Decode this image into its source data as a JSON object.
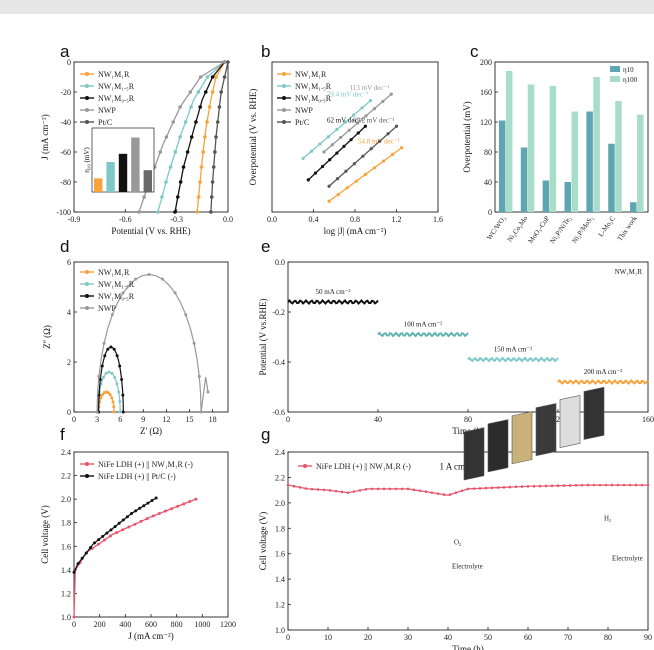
{
  "panels": {
    "a": "a",
    "b": "b",
    "c": "c",
    "d": "d",
    "e": "e",
    "f": "f",
    "g": "g"
  },
  "chart_data": [
    {
      "id": "a",
      "type": "line",
      "xlabel": "Potential (V vs. RHE)",
      "ylabel": "J (mA cm⁻²)",
      "xlim": [
        -0.9,
        0.0
      ],
      "ylim": [
        -100,
        0
      ],
      "xticks": [
        "-0.9",
        "-0.6",
        "-0.3",
        "0.0"
      ],
      "yticks": [
        "0",
        "-20",
        "-40",
        "-60",
        "-80",
        "-100"
      ],
      "series": [
        {
          "name": "NW₁M₁R",
          "color": "#f7a23a",
          "points": [
            [
              -0.02,
              0
            ],
            [
              -0.07,
              -10
            ],
            [
              -0.1,
              -25
            ],
            [
              -0.13,
              -45
            ],
            [
              -0.155,
              -70
            ],
            [
              -0.18,
              -100
            ]
          ]
        },
        {
          "name": "NW₁M₁.₅R",
          "color": "#7fc8c8",
          "points": [
            [
              -0.02,
              0
            ],
            [
              -0.12,
              -10
            ],
            [
              -0.2,
              -25
            ],
            [
              -0.28,
              -50
            ],
            [
              -0.35,
              -75
            ],
            [
              -0.41,
              -100
            ]
          ]
        },
        {
          "name": "NW₁M₀.₅R",
          "color": "#111111",
          "points": [
            [
              -0.02,
              0
            ],
            [
              -0.09,
              -10
            ],
            [
              -0.15,
              -25
            ],
            [
              -0.2,
              -45
            ],
            [
              -0.26,
              -70
            ],
            [
              -0.31,
              -100
            ]
          ]
        },
        {
          "name": "NWP",
          "color": "#999999",
          "points": [
            [
              -0.02,
              0
            ],
            [
              -0.16,
              -10
            ],
            [
              -0.28,
              -30
            ],
            [
              -0.38,
              -55
            ],
            [
              -0.46,
              -80
            ],
            [
              -0.52,
              -100
            ]
          ]
        },
        {
          "name": "Pt/C",
          "color": "#555555",
          "points": [
            [
              0,
              0
            ],
            [
              -0.04,
              -20
            ],
            [
              -0.07,
              -50
            ],
            [
              -0.09,
              -80
            ],
            [
              -0.1,
              -100
            ]
          ]
        }
      ],
      "inset": {
        "type": "bar",
        "ylabel": "η₁₀ (mV)",
        "values": [
          25,
          55,
          70,
          100,
          40
        ],
        "colors": [
          "#f7a23a",
          "#7fc8c8",
          "#111111",
          "#999999",
          "#6a6a6a"
        ]
      }
    },
    {
      "id": "b",
      "type": "line",
      "xlabel": "log |J| (mA cm⁻²)",
      "ylabel": "Overpotential (V vs. RHE)",
      "xlim": [
        0.0,
        1.6
      ],
      "xticks": [
        "0.0",
        "0.4",
        "0.8",
        "1.2",
        "1.6"
      ],
      "series": [
        {
          "name": "NW₁M₁R",
          "color": "#f7a23a",
          "points": [
            [
              0.55,
              0.05
            ],
            [
              1.25,
              0.3
            ]
          ],
          "slope_label": "54.8 mV dec⁻¹"
        },
        {
          "name": "NW₁M₁.₅R",
          "color": "#7fc8c8",
          "points": [
            [
              0.3,
              0.25
            ],
            [
              0.95,
              0.52
            ]
          ],
          "slope_label": "79.4 mV dec⁻¹"
        },
        {
          "name": "NW₁M₀.₅R",
          "color": "#111111",
          "points": [
            [
              0.35,
              0.15
            ],
            [
              0.9,
              0.4
            ]
          ],
          "slope_label": "62 mV dec⁻¹"
        },
        {
          "name": "NWP",
          "color": "#999999",
          "points": [
            [
              0.5,
              0.28
            ],
            [
              1.15,
              0.55
            ]
          ],
          "slope_label": "113 mV dec⁻¹"
        },
        {
          "name": "Pt/C",
          "color": "#555555",
          "points": [
            [
              0.55,
              0.12
            ],
            [
              1.2,
              0.4
            ]
          ],
          "slope_label": "69.2 mV dec⁻¹"
        }
      ]
    },
    {
      "id": "c",
      "type": "bar",
      "ylabel": "Overpotential (mV)",
      "ylim": [
        0,
        200
      ],
      "yticks": [
        "0",
        "40",
        "80",
        "120",
        "160",
        "200"
      ],
      "categories": [
        "WC/WO₃",
        "Ni₂Co₂Mo",
        "MoO₃-CoP",
        "Ni₂P/NiTe₂",
        "Ni₂P/MoS₂",
        "L-Mo₂C",
        "This work"
      ],
      "series": [
        {
          "name": "η10",
          "color": "#5fa6b3",
          "values": [
            122,
            86,
            42,
            40,
            134,
            91,
            13
          ]
        },
        {
          "name": "η100",
          "color": "#a8dccb",
          "values": [
            188,
            170,
            168,
            134,
            180,
            148,
            130
          ]
        }
      ]
    },
    {
      "id": "d",
      "type": "scatter",
      "xlabel": "Z' (Ω)",
      "ylabel": "Z'' (Ω)",
      "xlim": [
        0,
        20
      ],
      "ylim": [
        0,
        6
      ],
      "xticks": [
        "0",
        "3",
        "6",
        "9",
        "12",
        "15",
        "18"
      ],
      "yticks": [
        "0",
        "2",
        "4",
        "6"
      ],
      "series": [
        {
          "name": "NW₁M₁R",
          "color": "#f7a23a",
          "arc": [
            3.2,
            5.2,
            0.8
          ]
        },
        {
          "name": "NW₁M₁.₅R",
          "color": "#7fc8c8",
          "arc": [
            3.1,
            6.0,
            1.6
          ]
        },
        {
          "name": "NW₁M₀.₅R",
          "color": "#111111",
          "arc": [
            3.2,
            6.4,
            2.6
          ]
        },
        {
          "name": "NWP",
          "color": "#999999",
          "arc": [
            3.0,
            16.5,
            5.5
          ]
        }
      ]
    },
    {
      "id": "e",
      "type": "line",
      "xlabel": "Time (h)",
      "ylabel": "Potential (V vs.RHE)",
      "legend_note": "NW₁M₁R",
      "xlim": [
        0,
        160
      ],
      "ylim": [
        -0.6,
        0.0
      ],
      "xticks": [
        "0",
        "40",
        "80",
        "120",
        "160"
      ],
      "yticks": [
        "0.0",
        "-0.2",
        "-0.4",
        "-0.6"
      ],
      "segments": [
        {
          "label": "50 mA cm⁻²",
          "x": [
            0,
            40
          ],
          "y": -0.16,
          "color": "#111111"
        },
        {
          "label": "100 mA cm⁻²",
          "x": [
            40,
            80
          ],
          "y": -0.29,
          "color": "#5fb3b0"
        },
        {
          "label": "150 mA cm⁻²",
          "x": [
            80,
            120
          ],
          "y": -0.39,
          "color": "#7fc8c8"
        },
        {
          "label": "200 mA cm⁻²",
          "x": [
            120,
            160
          ],
          "y": -0.48,
          "color": "#f7a23a"
        }
      ]
    },
    {
      "id": "f",
      "type": "line",
      "xlabel": "J (mA cm⁻²)",
      "ylabel": "Cell voltage (V)",
      "xlim": [
        0,
        1200
      ],
      "ylim": [
        1.0,
        2.4
      ],
      "xticks": [
        "0",
        "200",
        "400",
        "600",
        "800",
        "1000",
        "1200"
      ],
      "yticks": [
        "1.0",
        "1.2",
        "1.4",
        "1.6",
        "1.8",
        "2.0",
        "2.2",
        "2.4"
      ],
      "series": [
        {
          "name": "NiFe LDH (+) || NW₁M₁R (-)",
          "color": "#e8556b",
          "points": [
            [
              0,
              1.0
            ],
            [
              10,
              1.4
            ],
            [
              100,
              1.55
            ],
            [
              300,
              1.7
            ],
            [
              600,
              1.85
            ],
            [
              950,
              2.0
            ]
          ]
        },
        {
          "name": "NiFe LDH (+) || Pt/C (-)",
          "color": "#111111",
          "points": [
            [
              0,
              1.38
            ],
            [
              30,
              1.45
            ],
            [
              150,
              1.62
            ],
            [
              300,
              1.75
            ],
            [
              450,
              1.88
            ],
            [
              640,
              2.01
            ]
          ]
        }
      ]
    },
    {
      "id": "g",
      "type": "line",
      "xlabel": "Time (h)",
      "ylabel": "Cell voltage (V)",
      "xlim": [
        0,
        90
      ],
      "ylim": [
        1.0,
        2.4
      ],
      "xticks": [
        "0",
        "10",
        "20",
        "30",
        "40",
        "50",
        "60",
        "70",
        "80",
        "90"
      ],
      "yticks": [
        "1.0",
        "1.2",
        "1.4",
        "1.6",
        "1.8",
        "2.0",
        "2.2",
        "2.4"
      ],
      "annotation": "1 A cm⁻²",
      "series": [
        {
          "name": "NiFe LDH (+) || NW₁M₁R (-)",
          "color": "#e8556b",
          "points": [
            [
              0,
              2.14
            ],
            [
              5,
              2.11
            ],
            [
              10,
              2.1
            ],
            [
              15,
              2.08
            ],
            [
              20,
              2.11
            ],
            [
              30,
              2.11
            ],
            [
              40,
              2.06
            ],
            [
              45,
              2.11
            ],
            [
              60,
              2.13
            ],
            [
              75,
              2.14
            ],
            [
              90,
              2.14
            ]
          ]
        }
      ],
      "inset_labels": {
        "o2": "O₂",
        "h2": "H₂",
        "electrolyte_left": "Electrolyte",
        "electrolyte_right": "Electrolyte"
      }
    }
  ]
}
